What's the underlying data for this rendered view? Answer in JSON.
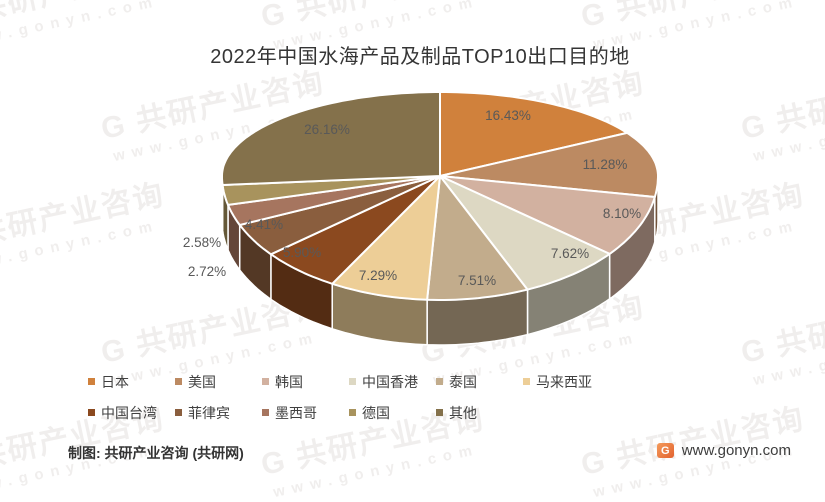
{
  "chart_data": {
    "type": "pie",
    "title": "2022年中国水海产品及制品TOP10出口目的地",
    "style": "3d-pie",
    "legend_position": "bottom",
    "legend_rows": [
      6,
      5
    ],
    "value_format": "percent-2dp",
    "slices": [
      {
        "label": "日本",
        "value": 16.43,
        "color": "#D0813C"
      },
      {
        "label": "美国",
        "value": 11.28,
        "color": "#BC8A62"
      },
      {
        "label": "韩国",
        "value": 8.1,
        "color": "#D2B1A0"
      },
      {
        "label": "中国香港",
        "value": 7.62,
        "color": "#DDD8C3"
      },
      {
        "label": "泰国",
        "value": 7.51,
        "color": "#C2AC8C"
      },
      {
        "label": "马来西亚",
        "value": 7.29,
        "color": "#EDCE97"
      },
      {
        "label": "中国台湾",
        "value": 5.9,
        "color": "#8B491F"
      },
      {
        "label": "菲律宾",
        "value": 4.41,
        "color": "#8A5E3E"
      },
      {
        "label": "墨西哥",
        "value": 2.72,
        "color": "#A6755F"
      },
      {
        "label": "德国",
        "value": 2.58,
        "color": "#A8935D"
      },
      {
        "label": "其他",
        "value": 26.16,
        "color": "#84714B"
      }
    ],
    "label_color": "#595959"
  },
  "footer": {
    "credit": "制图: 共研产业咨询 (共研网)",
    "site_url": "www.gonyn.com",
    "logo_letter": "G"
  },
  "watermark": {
    "line1": "G 共研产业咨询",
    "line2": "www.gonyn.com"
  }
}
